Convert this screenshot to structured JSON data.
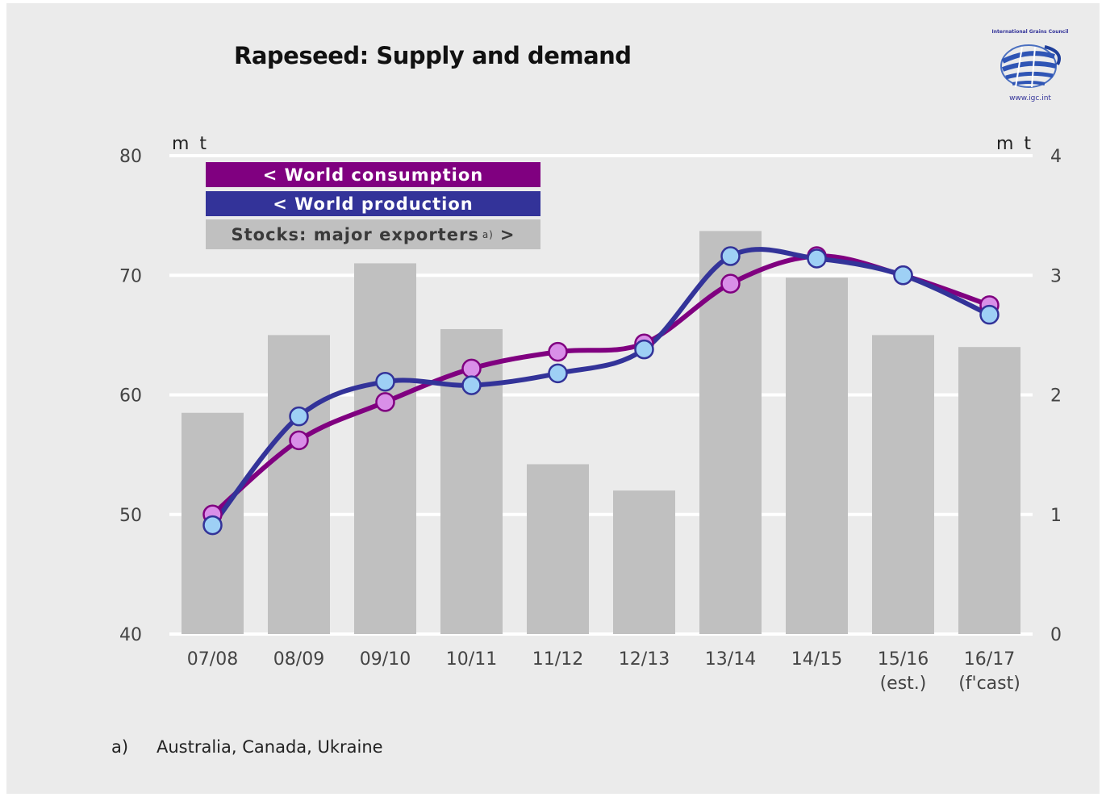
{
  "title": "Rapeseed: Supply and demand",
  "logo": {
    "org": "International Grains Council",
    "url": "www.igc.int"
  },
  "footnote": {
    "mark": "a)",
    "text": "Australia, Canada, Ukraine"
  },
  "legend": {
    "consumption": "< World consumption",
    "production": "< World production",
    "stocks": "Stocks: major exporters",
    "stocks_note": "a)",
    "stocks_arrow": ">"
  },
  "colors": {
    "background": "#ebebeb",
    "consumption": "#800080",
    "consumption_marker": "#d98fe8",
    "production": "#333399",
    "production_marker": "#9ed0f5",
    "stocks": "#c0c0c0",
    "grid": "#ffffff"
  },
  "chart_data": {
    "type": "bar",
    "categories": [
      "07/08",
      "08/09",
      "09/10",
      "10/11",
      "11/12",
      "12/13",
      "13/14",
      "14/15",
      "15/16\n(est.)",
      "16/17\n(f'cast)"
    ],
    "y_left": {
      "label": "m t",
      "min": 40,
      "max": 80,
      "ticks": [
        40,
        50,
        60,
        70,
        80
      ]
    },
    "y_right": {
      "label": "m t",
      "min": 0,
      "max": 4,
      "ticks": [
        0,
        1,
        2,
        3,
        4
      ]
    },
    "grid": true,
    "legend_position": "top-left",
    "series": [
      {
        "name": "Stocks: major exporters",
        "type": "bar",
        "axis": "right",
        "values": [
          1.85,
          2.5,
          3.1,
          2.55,
          1.42,
          1.2,
          3.37,
          2.98,
          2.5,
          2.4
        ]
      },
      {
        "name": "World consumption",
        "type": "line",
        "axis": "left",
        "values": [
          50.0,
          56.2,
          59.4,
          62.2,
          63.6,
          64.3,
          69.3,
          71.6,
          70.0,
          67.5
        ]
      },
      {
        "name": "World production",
        "type": "line",
        "axis": "left",
        "values": [
          49.1,
          58.2,
          61.1,
          60.8,
          61.8,
          63.8,
          71.6,
          71.4,
          70.0,
          66.7
        ]
      }
    ]
  }
}
